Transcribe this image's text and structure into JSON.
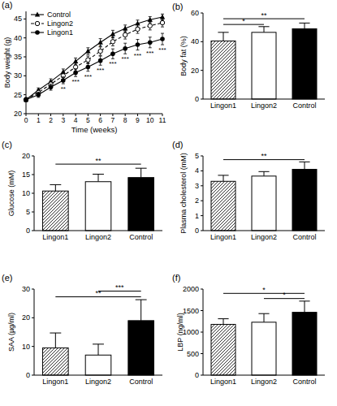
{
  "chart_data": [
    {
      "type": "line",
      "label": "(a)",
      "x_label": "Time (weeks)",
      "y_label": "Body weight (g)",
      "x": [
        0,
        1,
        2,
        3,
        4,
        5,
        6,
        7,
        8,
        9,
        10,
        11
      ],
      "xlim": [
        0,
        11
      ],
      "xticks": [
        0,
        1,
        2,
        3,
        4,
        5,
        6,
        7,
        8,
        9,
        10,
        11
      ],
      "ylim": [
        20,
        47
      ],
      "yticks": [
        20,
        25,
        30,
        35,
        40,
        45
      ],
      "legend": "top-left",
      "series": [
        {
          "name": "Control",
          "color": "#000000",
          "marker": "triangle",
          "line_style": "solid",
          "values": [
            23.7,
            26.2,
            28.5,
            31,
            33.8,
            36.5,
            38.8,
            41,
            42.5,
            43.8,
            44.8,
            45.5
          ],
          "errors": [
            0.5,
            0.6,
            0.7,
            0.8,
            0.9,
            0.9,
            1,
            1,
            0.9,
            0.9,
            0.8,
            0.8
          ]
        },
        {
          "name": "Lingon2",
          "color": "#000000",
          "marker": "circle-open",
          "line_style": "dashed",
          "values": [
            23.7,
            25.6,
            27.8,
            30,
            32.3,
            34.2,
            36.5,
            39,
            40.8,
            42.3,
            43.2,
            44
          ],
          "errors": [
            0.5,
            0.7,
            0.8,
            0.9,
            1,
            1,
            1.1,
            1.1,
            1.1,
            1.1,
            1.1,
            1.1
          ]
        },
        {
          "name": "Lingon1",
          "color": "#000000",
          "marker": "circle",
          "line_style": "solid",
          "values": [
            23.7,
            25,
            27,
            28.8,
            30.8,
            32.3,
            34,
            35.8,
            37.2,
            38.2,
            38.8,
            39.7
          ],
          "errors": [
            0.5,
            0.7,
            0.8,
            0.9,
            1,
            1.1,
            1.2,
            1.3,
            1.4,
            1.4,
            1.4,
            1.5
          ]
        }
      ],
      "annotations": [
        {
          "x": 3,
          "y": 26.6,
          "text": "**"
        },
        {
          "x": 4,
          "y": 28.4,
          "text": "***"
        },
        {
          "x": 5,
          "y": 29.8,
          "text": "***"
        },
        {
          "x": 6,
          "y": 31.4,
          "text": "***"
        },
        {
          "x": 7,
          "y": 33.1,
          "text": "***"
        },
        {
          "x": 8,
          "y": 34.4,
          "text": "***"
        },
        {
          "x": 9,
          "y": 35.4,
          "text": "***"
        },
        {
          "x": 10,
          "y": 36,
          "text": "***"
        },
        {
          "x": 11,
          "y": 36.8,
          "text": "***"
        },
        {
          "x": 6,
          "y": 37.7,
          "text": "*"
        },
        {
          "x": 7,
          "y": 40.1,
          "text": "*"
        }
      ]
    },
    {
      "type": "bar",
      "label": "(b)",
      "y_label": "Body fat (%)",
      "categories": [
        "Lingon1",
        "Lingon2",
        "Control"
      ],
      "values": [
        40.5,
        46.5,
        49
      ],
      "errors": [
        6,
        4,
        4
      ],
      "colors": [
        "url(#hatch)",
        "#ffffff",
        "#000000"
      ],
      "ylim": [
        0,
        60
      ],
      "yticks": [
        0,
        20,
        40,
        60
      ],
      "significance": [
        {
          "from": 0,
          "to": 1,
          "y": 52,
          "text": "*"
        },
        {
          "from": 0,
          "to": 2,
          "y": 56,
          "text": "**"
        }
      ]
    },
    {
      "type": "bar",
      "label": "(c)",
      "y_label": "Glucose (mM)",
      "categories": [
        "Lingon1",
        "Lingon2",
        "Control"
      ],
      "values": [
        10.6,
        13.1,
        14.2
      ],
      "errors": [
        1.7,
        2,
        2.5
      ],
      "colors": [
        "url(#hatch)",
        "#ffffff",
        "#000000"
      ],
      "ylim": [
        0,
        20
      ],
      "yticks": [
        0,
        5,
        10,
        15,
        20
      ],
      "significance": [
        {
          "from": 0,
          "to": 2,
          "y": 17.8,
          "text": "**"
        }
      ]
    },
    {
      "type": "bar",
      "label": "(d)",
      "y_label": "Plasma cholesterol (mM)",
      "categories": [
        "Lingon1",
        "Lingon2",
        "Control"
      ],
      "values": [
        3.3,
        3.65,
        4.1
      ],
      "errors": [
        0.4,
        0.3,
        0.5
      ],
      "colors": [
        "url(#hatch)",
        "#ffffff",
        "#000000"
      ],
      "ylim": [
        0,
        5
      ],
      "yticks": [
        0,
        1,
        2,
        3,
        4,
        5
      ],
      "significance": [
        {
          "from": 0,
          "to": 2,
          "y": 4.75,
          "text": "**"
        }
      ]
    },
    {
      "type": "bar",
      "label": "(e)",
      "y_label": "SAA (µg/ml)",
      "categories": [
        "Lingon1",
        "Lingon2",
        "Control"
      ],
      "values": [
        9.5,
        7,
        19
      ],
      "errors": [
        5.2,
        3.8,
        7.3
      ],
      "colors": [
        "url(#hatch)",
        "#ffffff",
        "#000000"
      ],
      "ylim": [
        0,
        30
      ],
      "yticks": [
        0,
        10,
        20,
        30
      ],
      "significance": [
        {
          "from": 0,
          "to": 2,
          "y": 27.3,
          "text": "**"
        },
        {
          "from": 1,
          "to": 2,
          "y": 29.3,
          "text": "***"
        }
      ]
    },
    {
      "type": "bar",
      "label": "(f)",
      "y_label": "LBP (ng/ml)",
      "categories": [
        "Lingon1",
        "Lingon2",
        "Control"
      ],
      "values": [
        1180,
        1230,
        1460
      ],
      "errors": [
        130,
        200,
        260
      ],
      "colors": [
        "url(#hatch)",
        "#ffffff",
        "#000000"
      ],
      "ylim": [
        0,
        2000
      ],
      "yticks": [
        0,
        500,
        1000,
        1500,
        2000
      ],
      "significance": [
        {
          "from": 1,
          "to": 2,
          "y": 1780,
          "text": "*"
        },
        {
          "from": 0,
          "to": 2,
          "y": 1900,
          "text": "*"
        }
      ]
    }
  ]
}
